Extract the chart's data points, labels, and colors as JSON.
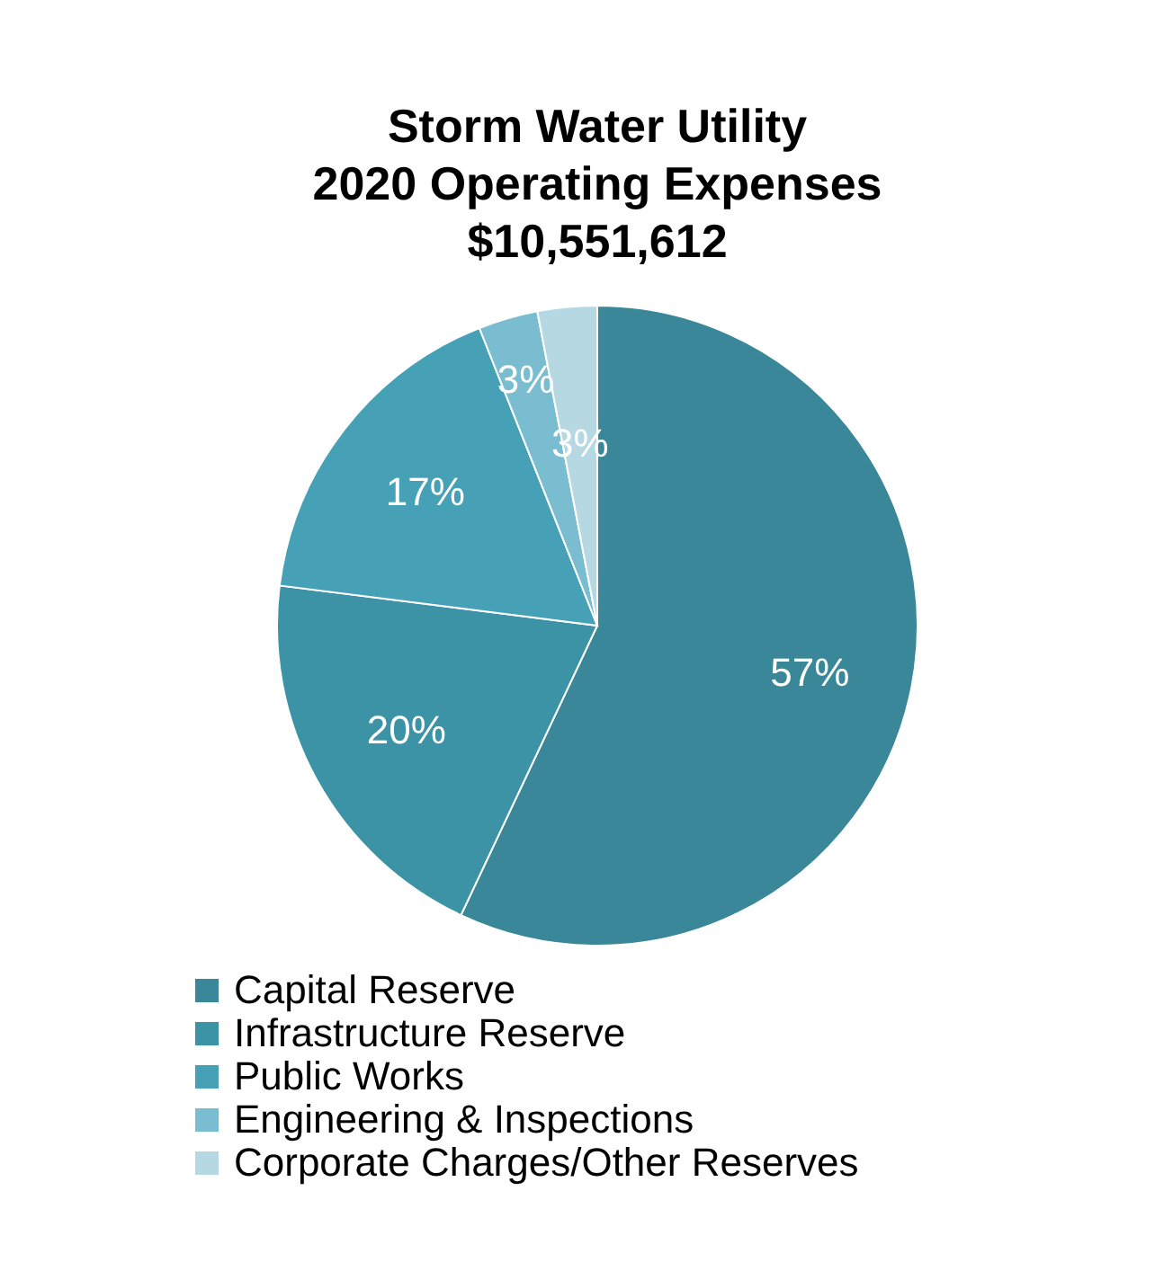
{
  "chart_data": {
    "type": "pie",
    "title": "Storm Water Utility\n2020 Operating Expenses\n$10,551,612",
    "categories": [
      "Capital Reserve",
      "Infrastructure Reserve",
      "Public Works",
      "Engineering & Inspections",
      "Corporate Charges/Other Reserves"
    ],
    "values": [
      57,
      20,
      17,
      3,
      3
    ],
    "value_labels": [
      "57%",
      "20%",
      "17%",
      "3%",
      "3%"
    ],
    "colors": [
      "#3a8799",
      "#3d93a6",
      "#47a1b6",
      "#7bbdd0",
      "#b5d8e3"
    ],
    "legend": "bottom"
  }
}
